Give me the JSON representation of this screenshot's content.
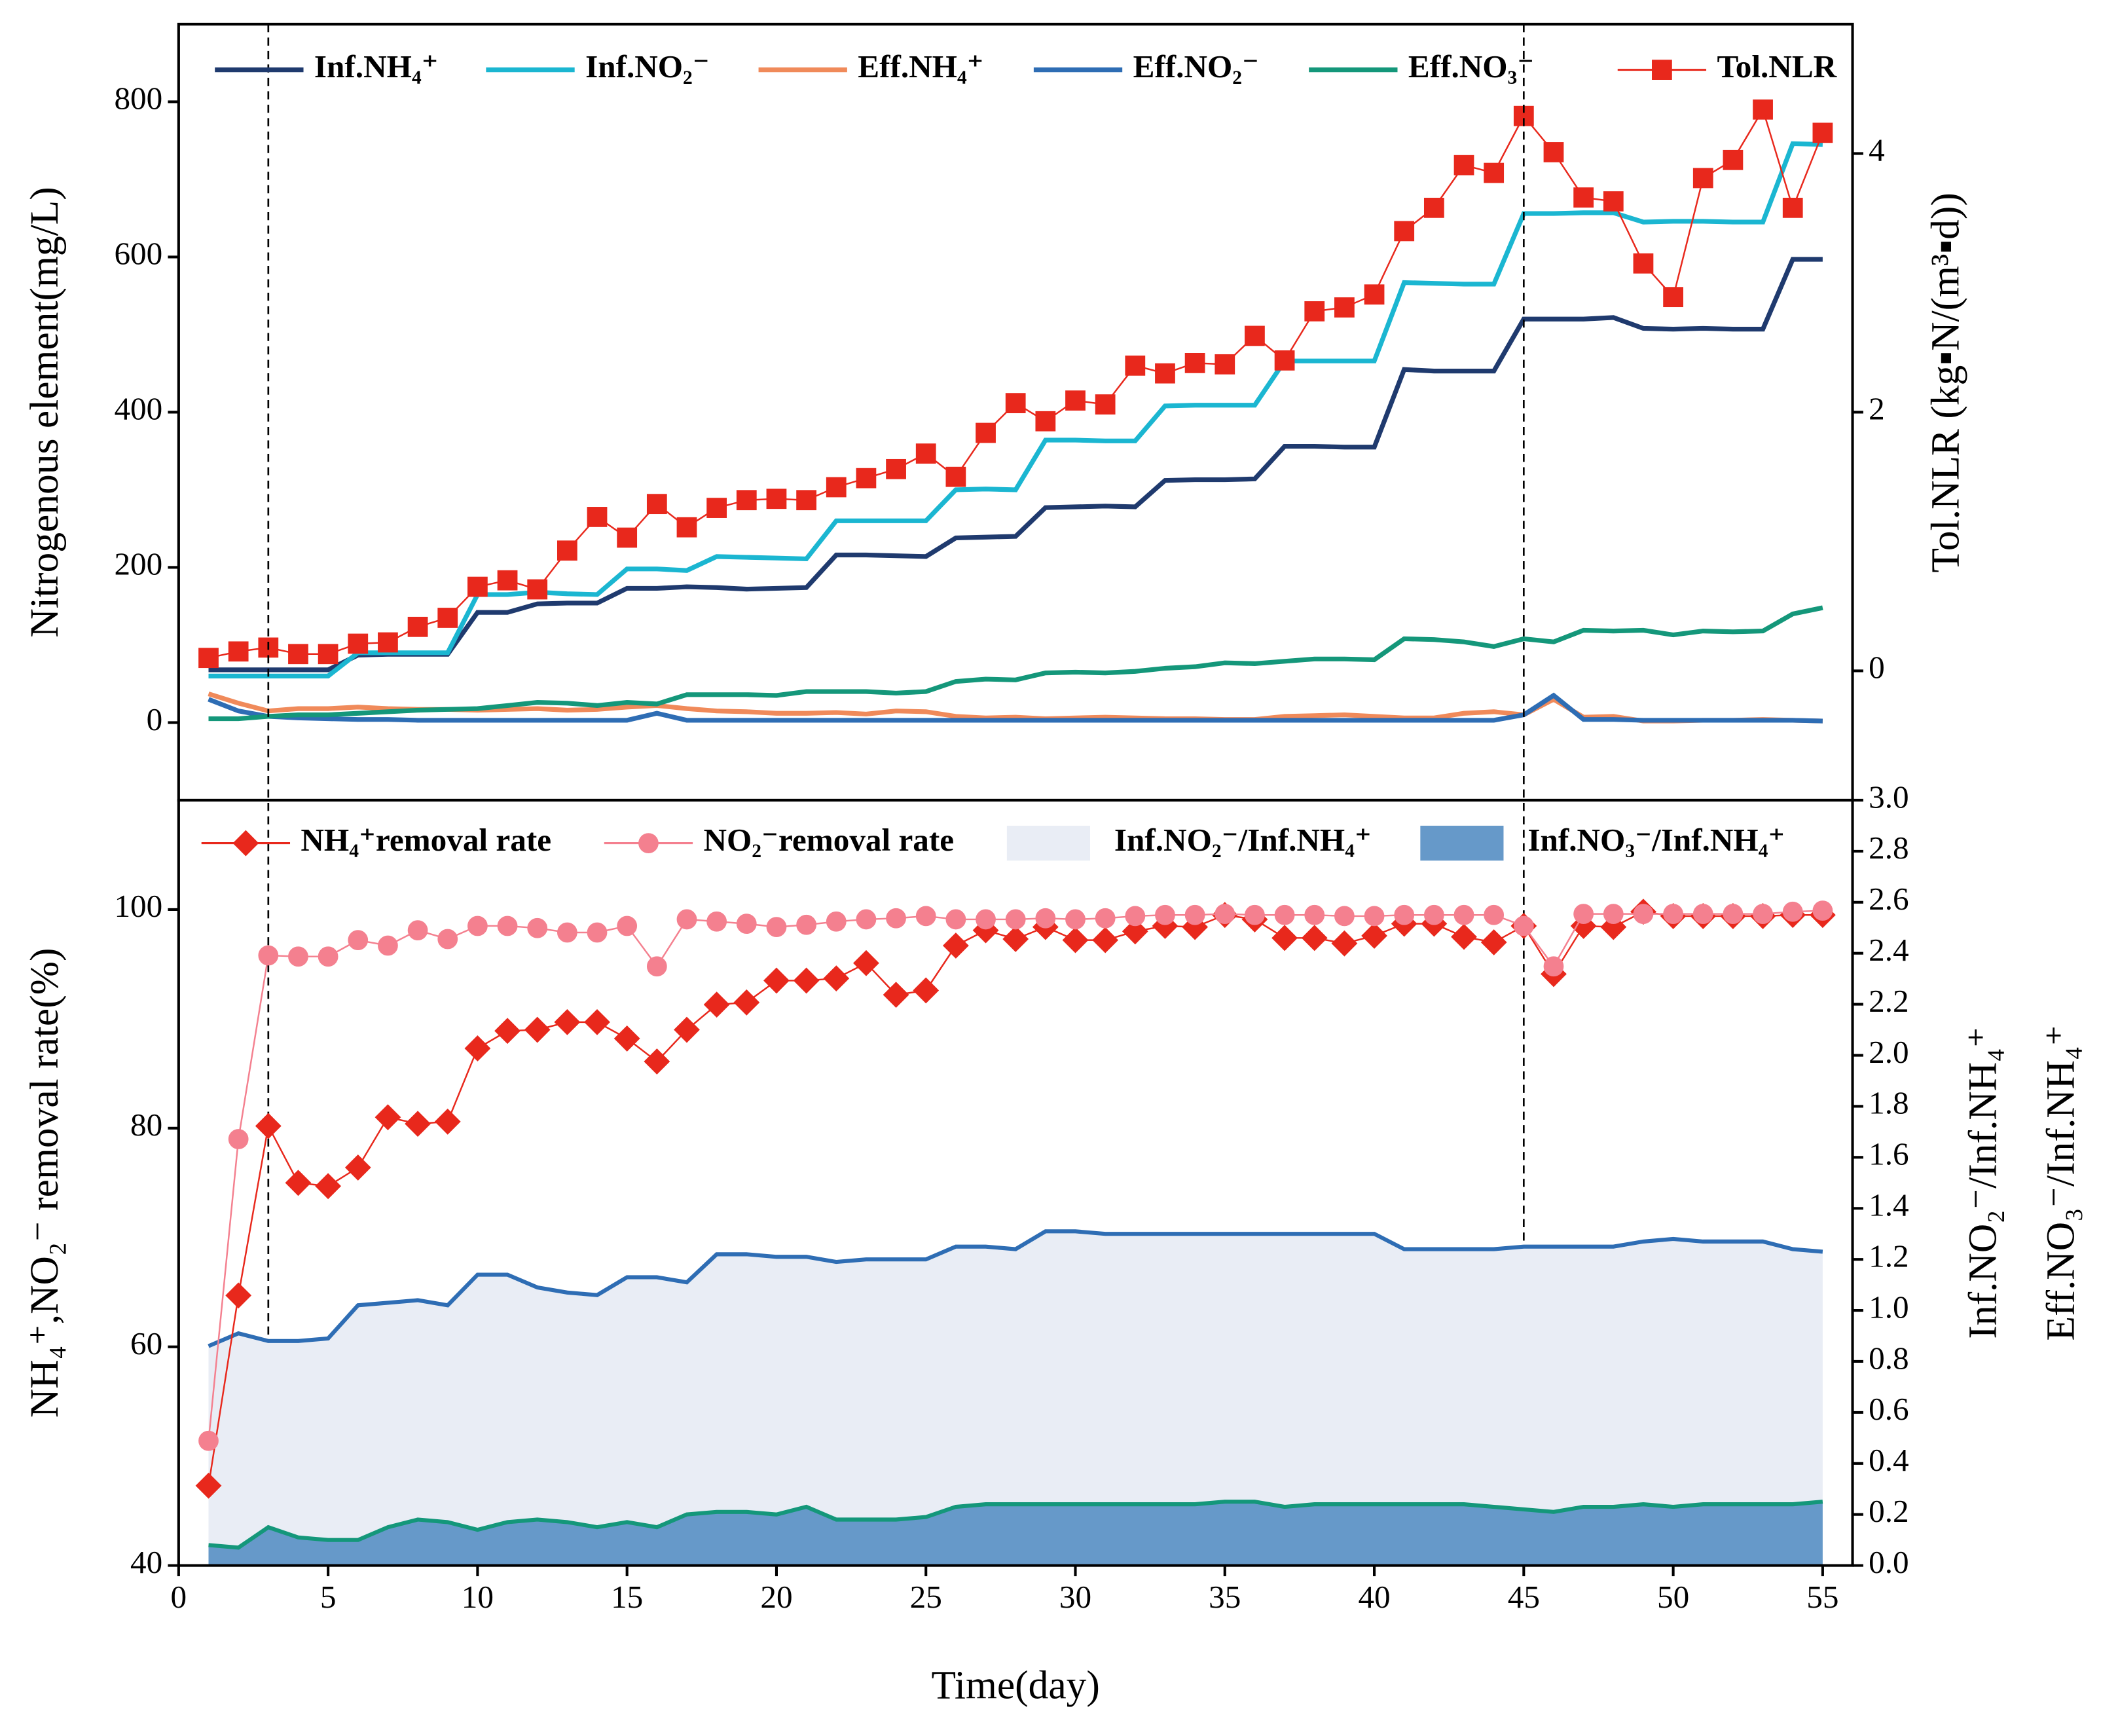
{
  "chart_data": [
    {
      "type": "line",
      "ylabel": "Nitrogenous element(mg/L)",
      "y2label": "Tol.NLR (kg▪N/(m³▪d))",
      "x": [
        1,
        2,
        3,
        4,
        5,
        6,
        7,
        8,
        9,
        10,
        11,
        12,
        13,
        14,
        15,
        16,
        17,
        18,
        19,
        20,
        21,
        22,
        23,
        24,
        25,
        26,
        27,
        28,
        29,
        30,
        31,
        32,
        33,
        34,
        35,
        36,
        37,
        38,
        39,
        40,
        41,
        42,
        43,
        44,
        45,
        46,
        47,
        48,
        49,
        50,
        51,
        52,
        53,
        54,
        55
      ],
      "xlim": [
        0,
        56
      ],
      "ylim": [
        -100,
        900
      ],
      "yticks": [
        0,
        200,
        400,
        600,
        800
      ],
      "y2lim": [
        -1,
        5
      ],
      "y2ticks": [
        0,
        2,
        4
      ],
      "vlines": [
        3,
        45
      ],
      "series": [
        {
          "name": "Inf.NH₄⁺",
          "color": "#1f3a6e",
          "values": [
            68,
            68,
            68,
            68,
            68,
            87,
            88,
            88,
            88,
            142,
            142,
            153,
            154,
            154,
            173,
            173,
            175,
            174,
            172,
            173,
            174,
            216,
            216,
            215,
            214,
            238,
            239,
            240,
            277,
            278,
            279,
            278,
            312,
            313,
            313,
            314,
            356,
            356,
            355,
            355,
            455,
            453,
            453,
            453,
            520,
            520,
            520,
            522,
            508,
            507,
            508,
            507,
            507,
            597,
            597
          ]
        },
        {
          "name": "Inf.NO₂⁻",
          "color": "#1bb6d1",
          "values": [
            60,
            60,
            60,
            60,
            60,
            90,
            90,
            90,
            90,
            165,
            165,
            168,
            166,
            165,
            198,
            198,
            196,
            214,
            213,
            212,
            211,
            260,
            260,
            260,
            260,
            300,
            301,
            300,
            364,
            364,
            363,
            363,
            408,
            409,
            409,
            409,
            466,
            466,
            466,
            466,
            567,
            566,
            565,
            565,
            656,
            656,
            657,
            657,
            645,
            646,
            646,
            645,
            645,
            746,
            745
          ]
        },
        {
          "name": "Eff.NH₄⁺",
          "color": "#f08a5a",
          "values": [
            37,
            25,
            15,
            18,
            18,
            20,
            18,
            17,
            17,
            16,
            17,
            18,
            16,
            17,
            20,
            22,
            18,
            15,
            14,
            12,
            12,
            13,
            11,
            15,
            14,
            8,
            6,
            7,
            5,
            6,
            7,
            6,
            5,
            5,
            4,
            4,
            8,
            9,
            10,
            8,
            6,
            6,
            12,
            14,
            10,
            30,
            7,
            8,
            2,
            2,
            3,
            3,
            4,
            3,
            2
          ]
        },
        {
          "name": "Eff.NO₂⁻",
          "color": "#2e6db4",
          "values": [
            30,
            15,
            8,
            6,
            5,
            4,
            4,
            3,
            3,
            3,
            3,
            3,
            3,
            3,
            3,
            12,
            3,
            3,
            3,
            3,
            3,
            3,
            3,
            3,
            3,
            3,
            3,
            3,
            3,
            3,
            3,
            3,
            3,
            3,
            3,
            3,
            3,
            3,
            3,
            3,
            3,
            3,
            3,
            3,
            10,
            35,
            4,
            4,
            3,
            3,
            3,
            3,
            3,
            3,
            2
          ]
        },
        {
          "name": "Eff.NO₃⁻",
          "color": "#14977a",
          "values": [
            5,
            5,
            8,
            10,
            10,
            12,
            14,
            16,
            17,
            18,
            22,
            26,
            25,
            22,
            26,
            24,
            36,
            36,
            36,
            35,
            40,
            40,
            40,
            38,
            40,
            53,
            56,
            55,
            64,
            65,
            64,
            66,
            70,
            72,
            77,
            76,
            79,
            82,
            82,
            81,
            108,
            107,
            104,
            98,
            108,
            104,
            119,
            118,
            119,
            113,
            118,
            117,
            118,
            140,
            148
          ]
        },
        {
          "name": "Tol.NLR",
          "color": "#e8281c",
          "marker": "square",
          "axis": "y2",
          "values": [
            0.1,
            0.15,
            0.18,
            0.13,
            0.13,
            0.21,
            0.22,
            0.34,
            0.41,
            0.65,
            0.7,
            0.63,
            0.93,
            1.19,
            1.03,
            1.29,
            1.11,
            1.26,
            1.32,
            1.33,
            1.32,
            1.42,
            1.49,
            1.56,
            1.68,
            1.5,
            1.84,
            2.07,
            1.93,
            2.09,
            2.06,
            2.36,
            2.3,
            2.38,
            2.37,
            2.59,
            2.4,
            2.78,
            2.81,
            2.91,
            3.4,
            3.58,
            3.91,
            3.85,
            4.29,
            4.01,
            3.66,
            3.63,
            3.15,
            2.89,
            3.81,
            3.95,
            4.34,
            3.58,
            4.16
          ]
        }
      ]
    },
    {
      "type": "line",
      "xlabel": "Time(day)",
      "ylabel": "NH₄⁺,NO₂⁻ removal rate(%)",
      "y2label": "Inf.NO₂⁻/Inf.NH₄⁺",
      "y3label": "Eff.NO₃⁻/Inf.NH₄⁺",
      "x": [
        1,
        2,
        3,
        4,
        5,
        6,
        7,
        8,
        9,
        10,
        11,
        12,
        13,
        14,
        15,
        16,
        17,
        18,
        19,
        20,
        21,
        22,
        23,
        24,
        25,
        26,
        27,
        28,
        29,
        30,
        31,
        32,
        33,
        34,
        35,
        36,
        37,
        38,
        39,
        40,
        41,
        42,
        43,
        44,
        45,
        46,
        47,
        48,
        49,
        50,
        51,
        52,
        53,
        54,
        55
      ],
      "xlim": [
        0,
        56
      ],
      "xticks": [
        0,
        5,
        10,
        15,
        20,
        25,
        30,
        35,
        40,
        45,
        50,
        55
      ],
      "ylim": [
        40,
        110
      ],
      "yticks": [
        40,
        60,
        80,
        100
      ],
      "y2lim": [
        0,
        3
      ],
      "y2ticks": [
        {
          "value": 0,
          "label": "0.0"
        },
        0.2,
        0.4,
        0.6,
        0.8,
        {
          "value": 1,
          "label": "1.0"
        },
        1.2,
        1.4,
        1.6,
        1.8,
        {
          "value": 2,
          "label": "2.0"
        },
        2.2,
        2.4,
        2.6,
        2.8,
        {
          "value": 3,
          "label": "3.0"
        }
      ],
      "series": [
        {
          "name": "NH₄⁺removal rate",
          "color": "#e8281c",
          "marker": "diamond",
          "values": [
            47.3,
            64.7,
            80.2,
            75.0,
            74.7,
            76.4,
            81.0,
            80.4,
            80.6,
            87.3,
            88.9,
            89.0,
            89.7,
            89.7,
            88.2,
            86.1,
            89.0,
            91.3,
            91.5,
            93.5,
            93.5,
            93.7,
            95.1,
            92.2,
            92.6,
            96.7,
            98.1,
            97.3,
            98.4,
            97.2,
            97.2,
            98.0,
            98.5,
            98.4,
            99.5,
            99.1,
            97.4,
            97.4,
            96.9,
            97.6,
            98.7,
            98.7,
            97.5,
            97.0,
            98.5,
            94.1,
            98.5,
            98.4,
            99.8,
            99.4,
            99.4,
            99.4,
            99.4,
            99.5,
            99.5
          ]
        },
        {
          "name": "NO₂⁻removal rate",
          "color": "#f4808f",
          "marker": "circle",
          "values": [
            51.4,
            79.0,
            95.8,
            95.7,
            95.7,
            97.2,
            96.7,
            98.1,
            97.3,
            98.5,
            98.5,
            98.3,
            97.9,
            97.9,
            98.5,
            94.8,
            99.1,
            98.9,
            98.7,
            98.4,
            98.6,
            98.9,
            99.1,
            99.2,
            99.4,
            99.1,
            99.1,
            99.1,
            99.2,
            99.1,
            99.2,
            99.4,
            99.5,
            99.5,
            99.6,
            99.5,
            99.5,
            99.5,
            99.4,
            99.4,
            99.5,
            99.5,
            99.5,
            99.5,
            98.5,
            94.8,
            99.6,
            99.6,
            99.6,
            99.6,
            99.6,
            99.6,
            99.6,
            99.8,
            99.9
          ]
        },
        {
          "name": "Inf.NO₂⁻/Inf.NH₄⁺",
          "type": "area",
          "color": "#e9edf5",
          "edge_color": "#2e6db4",
          "axis": "y2",
          "values": [
            0.86,
            0.91,
            0.88,
            0.88,
            0.89,
            1.02,
            1.03,
            1.04,
            1.02,
            1.14,
            1.14,
            1.09,
            1.07,
            1.06,
            1.13,
            1.13,
            1.11,
            1.22,
            1.22,
            1.21,
            1.21,
            1.19,
            1.2,
            1.2,
            1.2,
            1.25,
            1.25,
            1.24,
            1.31,
            1.31,
            1.3,
            1.3,
            1.3,
            1.3,
            1.3,
            1.3,
            1.3,
            1.3,
            1.3,
            1.3,
            1.24,
            1.24,
            1.24,
            1.24,
            1.25,
            1.25,
            1.25,
            1.25,
            1.27,
            1.28,
            1.27,
            1.27,
            1.27,
            1.24,
            1.23
          ]
        },
        {
          "name": "Inf.NO₃⁻/Inf.NH₄⁺",
          "type": "area",
          "color": "#6699c9",
          "edge_color": "#14977a",
          "axis": "y2",
          "values": [
            0.08,
            0.07,
            0.15,
            0.11,
            0.1,
            0.1,
            0.15,
            0.18,
            0.17,
            0.14,
            0.17,
            0.18,
            0.17,
            0.15,
            0.17,
            0.15,
            0.2,
            0.21,
            0.21,
            0.2,
            0.23,
            0.18,
            0.18,
            0.18,
            0.19,
            0.23,
            0.24,
            0.24,
            0.24,
            0.24,
            0.24,
            0.24,
            0.24,
            0.24,
            0.25,
            0.25,
            0.23,
            0.24,
            0.24,
            0.24,
            0.24,
            0.24,
            0.24,
            0.23,
            0.22,
            0.21,
            0.23,
            0.23,
            0.24,
            0.23,
            0.24,
            0.24,
            0.24,
            0.24,
            0.25
          ]
        }
      ]
    }
  ]
}
